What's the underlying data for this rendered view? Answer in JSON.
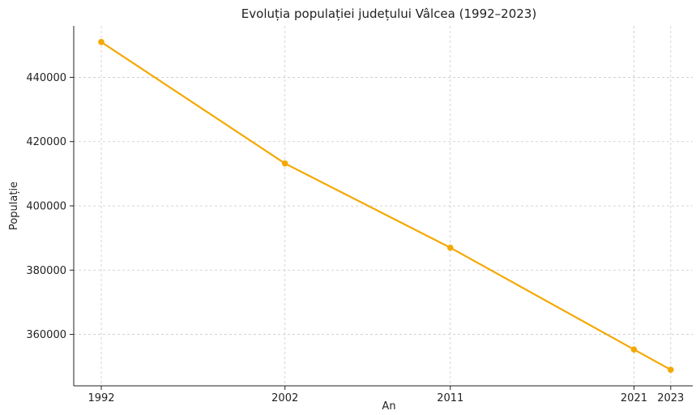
{
  "chart_data": {
    "type": "line",
    "title": "Evoluția populației județului Vâlcea (1992–2023)",
    "xlabel": "An",
    "ylabel": "Populație",
    "x": [
      1992,
      2002,
      2011,
      2021,
      2023
    ],
    "xticks": [
      "1992",
      "2002",
      "2011",
      "2021",
      "2023"
    ],
    "yticks": [
      "360000",
      "380000",
      "400000",
      "420000",
      "440000"
    ],
    "ylim": [
      344000,
      456000
    ],
    "xlim": [
      1990.5,
      2024.2
    ],
    "series": [
      {
        "values": [
          451000,
          413200,
          387000,
          355300,
          349000
        ]
      }
    ],
    "grid": true,
    "color": "#F5A800"
  }
}
